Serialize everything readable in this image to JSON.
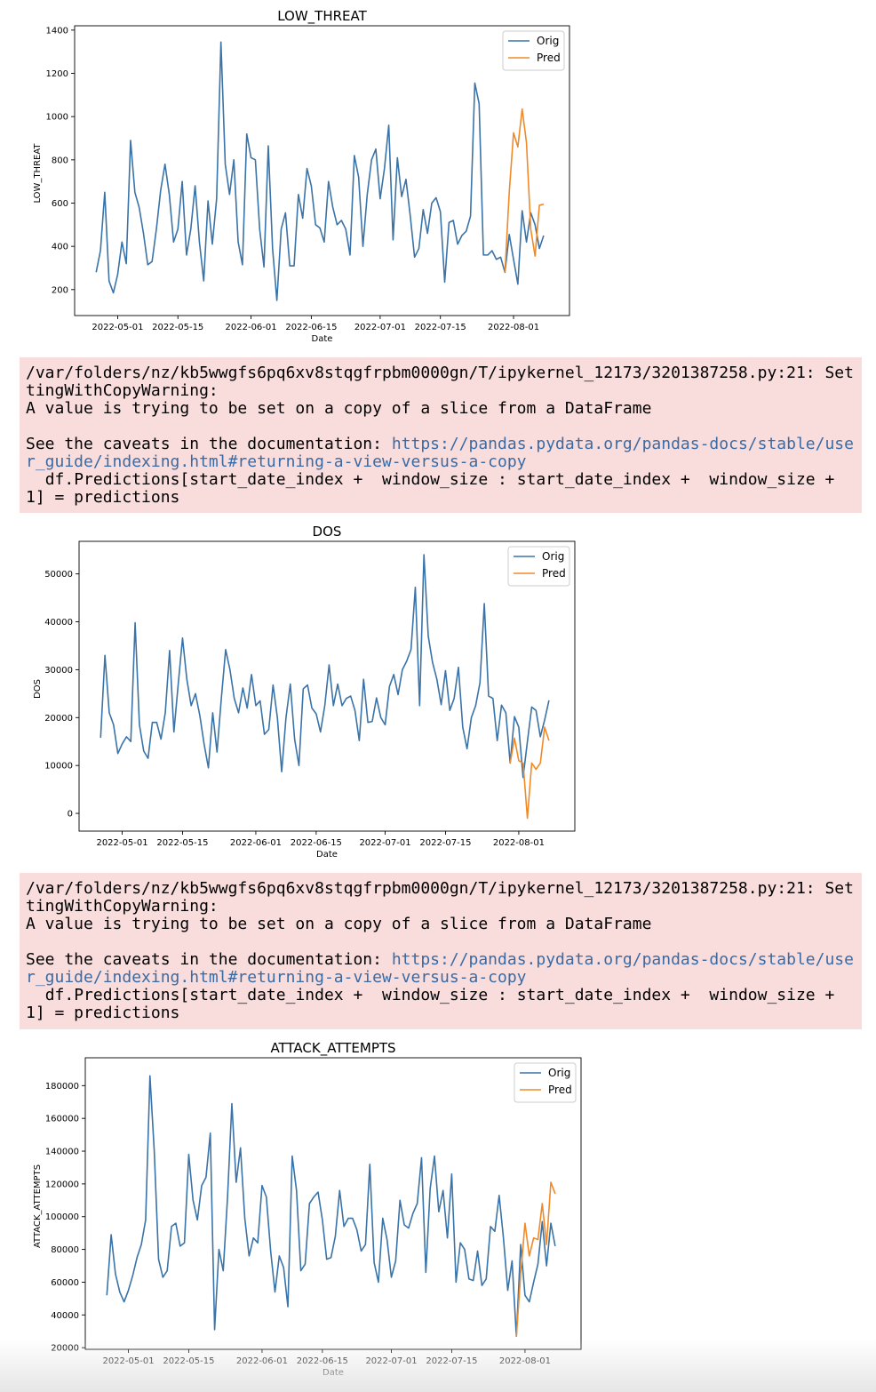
{
  "chart_data": [
    {
      "type": "line",
      "title": "LOW_THREAT",
      "xlabel": "Date",
      "ylabel": "LOW_THREAT",
      "ylim": [
        80,
        1420
      ],
      "yticks": [
        200,
        400,
        600,
        800,
        1000,
        1200,
        1400
      ],
      "xlim": [
        "2022-04-21",
        "2022-08-14"
      ],
      "xticks": [
        "2022-05-01",
        "2022-05-15",
        "2022-06-01",
        "2022-06-15",
        "2022-07-01",
        "2022-07-15",
        "2022-08-01"
      ],
      "legend": "top-right",
      "grid": false,
      "series": [
        {
          "name": "Orig",
          "color": "#3a73a8",
          "start": "2022-04-26",
          "values": [
            280,
            380,
            650,
            240,
            185,
            270,
            420,
            320,
            890,
            650,
            580,
            460,
            315,
            330,
            480,
            660,
            780,
            640,
            420,
            480,
            700,
            360,
            480,
            680,
            420,
            240,
            610,
            410,
            620,
            1345,
            780,
            640,
            800,
            420,
            315,
            920,
            810,
            800,
            480,
            305,
            865,
            390,
            150,
            480,
            555,
            310,
            310,
            640,
            530,
            760,
            680,
            500,
            485,
            420,
            700,
            580,
            500,
            520,
            480,
            360,
            820,
            720,
            400,
            640,
            800,
            850,
            620,
            760,
            960,
            430,
            810,
            630,
            710,
            540,
            350,
            390,
            570,
            460,
            600,
            625,
            560,
            235,
            510,
            520,
            410,
            450,
            470,
            540,
            1155,
            1060,
            360,
            360,
            380,
            340,
            350,
            280,
            455,
            340,
            225,
            565,
            420,
            555,
            500,
            390,
            450
          ]
        },
        {
          "name": "Pred",
          "color": "#f08a29",
          "start": "2022-07-30",
          "values": [
            280,
            650,
            925,
            860,
            1035,
            880,
            480,
            355,
            590,
            595
          ]
        }
      ]
    },
    {
      "type": "line",
      "title": "DOS",
      "xlabel": "Date",
      "ylabel": "DOS",
      "ylim": [
        -3700,
        56800
      ],
      "yticks": [
        0,
        10000,
        20000,
        30000,
        40000,
        50000
      ],
      "xlim": [
        "2022-04-21",
        "2022-08-14"
      ],
      "xticks": [
        "2022-05-01",
        "2022-05-15",
        "2022-06-01",
        "2022-06-15",
        "2022-07-01",
        "2022-07-15",
        "2022-08-01"
      ],
      "legend": "top-right",
      "grid": false,
      "series": [
        {
          "name": "Orig",
          "color": "#3a73a8",
          "start": "2022-04-26",
          "values": [
            15800,
            33000,
            21000,
            18500,
            12500,
            14500,
            16000,
            15000,
            39800,
            18500,
            13000,
            11500,
            19000,
            19000,
            15500,
            21000,
            34000,
            17000,
            27000,
            36600,
            28000,
            22500,
            25000,
            20500,
            14500,
            9500,
            21000,
            12800,
            24000,
            34200,
            30000,
            24000,
            21000,
            26200,
            22000,
            29000,
            22500,
            23500,
            16500,
            17500,
            26800,
            20000,
            8700,
            20000,
            27000,
            15500,
            10000,
            26000,
            26800,
            22000,
            20800,
            17000,
            22500,
            31000,
            22500,
            27000,
            22500,
            24000,
            24500,
            21500,
            15200,
            28000,
            19000,
            19200,
            24100,
            20000,
            18500,
            26500,
            29000,
            24800,
            30000,
            31800,
            34200,
            47200,
            22500,
            54000,
            37000,
            31500,
            28000,
            22700,
            29800,
            21500,
            24000,
            30500,
            18000,
            13500,
            20000,
            22500,
            27300,
            43800,
            24500,
            24000,
            15200,
            22600,
            21000,
            10500,
            20200,
            18000,
            7500,
            15000,
            22200,
            21500,
            16000,
            19500,
            23600
          ]
        },
        {
          "name": "Pred",
          "color": "#f08a29",
          "start": "2022-07-30",
          "values": [
            10500,
            15700,
            11000,
            10500,
            -1000,
            10500,
            9200,
            10500,
            18000,
            15200
          ]
        }
      ]
    },
    {
      "type": "line",
      "title": "ATTACK_ATTEMPTS",
      "xlabel": "Date",
      "ylabel": "ATTACK_ATTEMPTS",
      "ylim": [
        19000,
        197000
      ],
      "yticks": [
        20000,
        40000,
        60000,
        80000,
        100000,
        120000,
        140000,
        160000,
        180000
      ],
      "xlim": [
        "2022-04-21",
        "2022-08-14"
      ],
      "xticks": [
        "2022-05-01",
        "2022-05-15",
        "2022-06-01",
        "2022-06-15",
        "2022-07-01",
        "2022-07-15",
        "2022-08-01"
      ],
      "legend": "top-right",
      "grid": false,
      "series": [
        {
          "name": "Orig",
          "color": "#3a73a8",
          "start": "2022-04-26",
          "values": [
            52000,
            89000,
            65000,
            54000,
            48000,
            55000,
            64000,
            75000,
            83000,
            98000,
            186000,
            140000,
            74000,
            63000,
            67000,
            94000,
            96000,
            82000,
            84000,
            138000,
            110000,
            98000,
            119000,
            124000,
            151000,
            31000,
            80000,
            67000,
            112000,
            169000,
            121000,
            142000,
            99000,
            76000,
            87000,
            84000,
            119000,
            112000,
            79000,
            54000,
            76000,
            69000,
            45000,
            137000,
            116000,
            67000,
            71000,
            108000,
            112000,
            115000,
            98000,
            74000,
            75000,
            88000,
            116000,
            94000,
            99000,
            99000,
            92000,
            79000,
            83000,
            132000,
            72000,
            60000,
            99000,
            86000,
            63000,
            73000,
            110000,
            95000,
            93000,
            102000,
            108000,
            136000,
            66000,
            117000,
            137000,
            103000,
            116000,
            87000,
            126000,
            60000,
            84000,
            80000,
            62000,
            61000,
            79000,
            58000,
            62000,
            94000,
            91000,
            113000,
            87000,
            55000,
            73000,
            27000,
            83000,
            52000,
            48000,
            60000,
            71000,
            97000,
            70000,
            96000,
            82000
          ]
        },
        {
          "name": "Pred",
          "color": "#f08a29",
          "start": "2022-07-30",
          "values": [
            27000,
            65000,
            96000,
            76000,
            87000,
            86000,
            108000,
            83000,
            121000,
            114000
          ]
        }
      ]
    }
  ],
  "warnings": [
    {
      "path_text": "/var/folders/nz/kb5wwgfs6pq6xv8stqgfrpbm0000gn/T/ipykernel_12173/3201387258.py:21: SettingWithCopyWarning:",
      "message": "A value is trying to be set on a copy of a slice from a DataFrame",
      "see_prefix": "See the caveats in the documentation: ",
      "doc_link": "https://pandas.pydata.org/pandas-docs/stable/user_guide/indexing.html#returning-a-view-versus-a-copy",
      "code_line": "  df.Predictions[start_date_index +  window_size : start_date_index +  window_size + 1] = predictions"
    },
    {
      "path_text": "/var/folders/nz/kb5wwgfs6pq6xv8stqgfrpbm0000gn/T/ipykernel_12173/3201387258.py:21: SettingWithCopyWarning:",
      "message": "A value is trying to be set on a copy of a slice from a DataFrame",
      "see_prefix": "See the caveats in the documentation: ",
      "doc_link": "https://pandas.pydata.org/pandas-docs/stable/user_guide/indexing.html#returning-a-view-versus-a-copy",
      "code_line": "  df.Predictions[start_date_index +  window_size : start_date_index +  window_size + 1] = predictions"
    }
  ]
}
